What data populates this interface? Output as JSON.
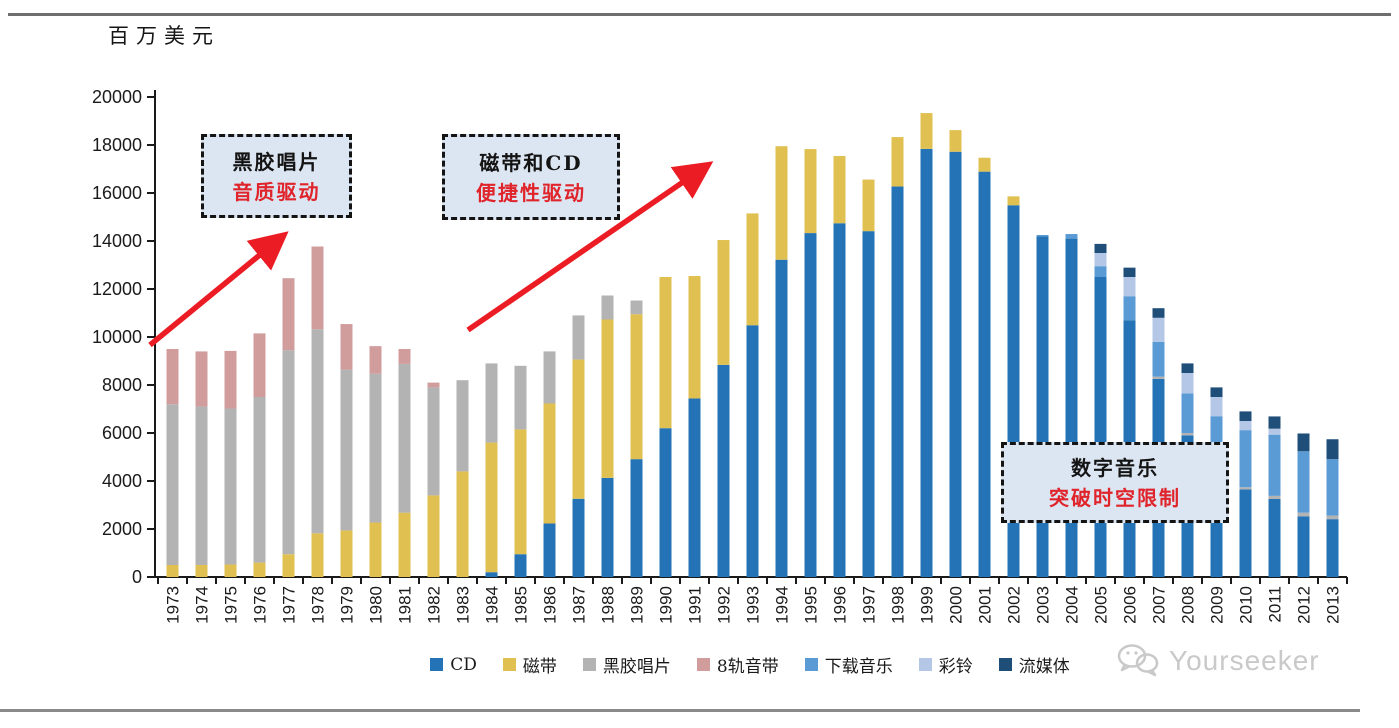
{
  "chart": {
    "unit_label": "百万美元"
  },
  "watermark": {
    "text": "Yourseeker"
  },
  "annotations": [
    {
      "line1": "黑胶唱片",
      "line2": "音质驱动"
    },
    {
      "line1": "磁带和CD",
      "line2": "便捷性驱动"
    },
    {
      "line1": "数字音乐",
      "line2": "突破时空限制"
    }
  ],
  "colors": {
    "annotation_fill": "#dce6f2",
    "annotation_border": "#141414",
    "annotation_accent": "#e0242b",
    "arrow_red": "#ec1c24",
    "axis": "#1a1a1a",
    "watermark_gray": "#c9c9c9"
  },
  "chart_data": {
    "type": "bar",
    "stacked": true,
    "title": "",
    "xlabel": "",
    "ylabel": "百万美元",
    "ylim": [
      0,
      20000
    ],
    "yticks": [
      0,
      2000,
      4000,
      6000,
      8000,
      10000,
      12000,
      14000,
      16000,
      18000,
      20000
    ],
    "grid": false,
    "legend_position": "bottom",
    "categories": [
      1973,
      1974,
      1975,
      1976,
      1977,
      1978,
      1979,
      1980,
      1981,
      1982,
      1983,
      1984,
      1985,
      1986,
      1987,
      1988,
      1989,
      1990,
      1991,
      1992,
      1993,
      1994,
      1995,
      1996,
      1997,
      1998,
      1999,
      2000,
      2001,
      2002,
      2003,
      2004,
      2005,
      2006,
      2007,
      2008,
      2009,
      2010,
      2011,
      2012,
      2013
    ],
    "series": [
      {
        "name": "CD",
        "color": "#2373b6",
        "values": [
          0,
          0,
          0,
          0,
          0,
          0,
          0,
          0,
          0,
          0,
          0,
          200,
          950,
          2230,
          3260,
          4130,
          4910,
          6200,
          7440,
          8840,
          10490,
          13220,
          14330,
          14740,
          14410,
          16270,
          17840,
          17720,
          16890,
          15490,
          14200,
          14100,
          12500,
          10700,
          8250,
          5900,
          4900,
          3650,
          3250,
          2530,
          2410
        ]
      },
      {
        "name": "磁带",
        "color": "#e0c050",
        "values": [
          500,
          500,
          520,
          600,
          950,
          1820,
          1940,
          2270,
          2680,
          3400,
          4400,
          5400,
          5200,
          5000,
          5800,
          6600,
          6040,
          6300,
          5100,
          5200,
          4660,
          4730,
          3500,
          2800,
          2150,
          2060,
          1490,
          900,
          580,
          370,
          0,
          0,
          0,
          0,
          0,
          0,
          0,
          0,
          0,
          0,
          0
        ]
      },
      {
        "name": "黑胶唱片",
        "color": "#b3b3b3",
        "values": [
          6700,
          6600,
          6500,
          6900,
          8500,
          8500,
          6700,
          6200,
          6200,
          4500,
          3800,
          3300,
          2650,
          2170,
          1840,
          1000,
          570,
          0,
          0,
          0,
          0,
          0,
          0,
          0,
          0,
          0,
          0,
          0,
          0,
          0,
          0,
          0,
          0,
          0,
          100,
          100,
          100,
          90,
          130,
          150,
          150
        ]
      },
      {
        "name": "8轨音带",
        "color": "#d09c9c",
        "values": [
          2300,
          2300,
          2400,
          2650,
          3000,
          3450,
          1900,
          1150,
          620,
          200,
          0,
          0,
          0,
          0,
          0,
          0,
          0,
          0,
          0,
          0,
          0,
          0,
          0,
          0,
          0,
          0,
          0,
          0,
          0,
          0,
          0,
          0,
          0,
          0,
          0,
          0,
          0,
          0,
          0,
          0,
          0
        ]
      },
      {
        "name": "下载音乐",
        "color": "#5b9bd5",
        "values": [
          0,
          0,
          0,
          0,
          0,
          0,
          0,
          0,
          0,
          0,
          0,
          0,
          0,
          0,
          0,
          0,
          0,
          0,
          0,
          0,
          0,
          0,
          0,
          0,
          0,
          0,
          0,
          0,
          0,
          0,
          50,
          190,
          450,
          1000,
          1450,
          1650,
          1700,
          2380,
          2550,
          2560,
          2350
        ]
      },
      {
        "name": "彩铃",
        "color": "#b4c7e7",
        "values": [
          0,
          0,
          0,
          0,
          0,
          0,
          0,
          0,
          0,
          0,
          0,
          0,
          0,
          0,
          0,
          0,
          0,
          0,
          0,
          0,
          0,
          0,
          0,
          0,
          0,
          0,
          0,
          0,
          0,
          0,
          0,
          0,
          550,
          800,
          1000,
          850,
          800,
          380,
          250,
          0,
          0
        ]
      },
      {
        "name": "流媒体",
        "color": "#1f4e79",
        "values": [
          0,
          0,
          0,
          0,
          0,
          0,
          0,
          0,
          0,
          0,
          0,
          0,
          0,
          0,
          0,
          0,
          0,
          0,
          0,
          0,
          0,
          0,
          0,
          0,
          0,
          0,
          0,
          0,
          0,
          0,
          0,
          0,
          380,
          390,
          400,
          400,
          400,
          400,
          510,
          740,
          830
        ]
      }
    ]
  }
}
